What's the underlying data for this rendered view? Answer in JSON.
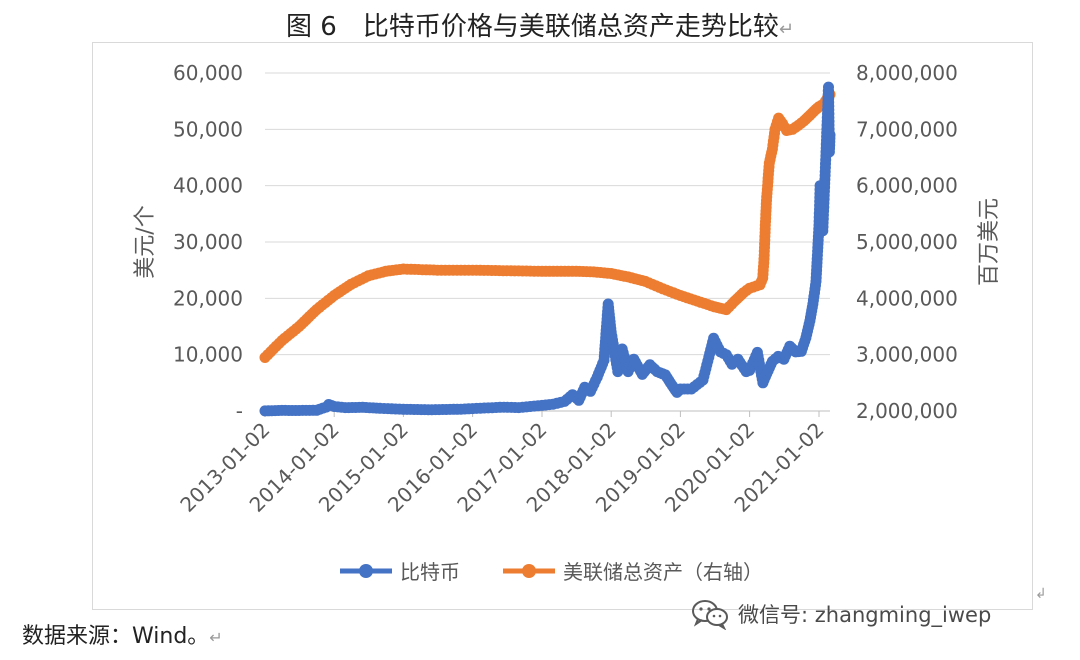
{
  "title": "图 6　比特币价格与美联储总资产走势比较",
  "title_return_mark": "↵",
  "source_text": "数据来源：Wind。",
  "source_return_mark": "↵",
  "watermark_text": "微信号: zhangming_iwep",
  "corner_mark": "↲",
  "colors": {
    "bitcoin": "#4472C4",
    "fed_assets": "#ED7D31",
    "axis_text": "#595959",
    "grid": "#d9d9d9"
  },
  "chart_data": {
    "type": "scatter",
    "title": "比特币价格与美联储总资产走势比较",
    "ylabel_left": "美元/个",
    "ylabel_right": "百万美元",
    "ylim_left": [
      0,
      60000
    ],
    "ylim_right": [
      2000000,
      8000000
    ],
    "yticks_left": [
      "-",
      "10,000",
      "20,000",
      "30,000",
      "40,000",
      "50,000",
      "60,000"
    ],
    "yticks_right": [
      "2,000,000",
      "3,000,000",
      "4,000,000",
      "5,000,000",
      "6,000,000",
      "7,000,000",
      "8,000,000"
    ],
    "xticks": [
      "2013-01-02",
      "2014-01-02",
      "2015-01-02",
      "2016-01-02",
      "2017-01-02",
      "2018-01-02",
      "2019-01-02",
      "2020-01-02",
      "2021-01-02"
    ],
    "xlim": [
      "2013-01-02",
      "2021-03-01"
    ],
    "grid": "horizontal",
    "legend": "bottom",
    "series": [
      {
        "name": "比特币",
        "axis": "left",
        "points": [
          [
            "2013-01-02",
            13
          ],
          [
            "2013-04-01",
            100
          ],
          [
            "2013-07-01",
            90
          ],
          [
            "2013-10-01",
            130
          ],
          [
            "2013-11-20",
            700
          ],
          [
            "2013-12-04",
            1150
          ],
          [
            "2014-01-02",
            800
          ],
          [
            "2014-03-01",
            600
          ],
          [
            "2014-06-01",
            650
          ],
          [
            "2014-09-01",
            480
          ],
          [
            "2015-01-02",
            300
          ],
          [
            "2015-06-01",
            230
          ],
          [
            "2015-11-01",
            320
          ],
          [
            "2016-01-02",
            430
          ],
          [
            "2016-06-15",
            680
          ],
          [
            "2016-09-01",
            600
          ],
          [
            "2017-01-02",
            1000
          ],
          [
            "2017-03-01",
            1200
          ],
          [
            "2017-05-01",
            1700
          ],
          [
            "2017-06-12",
            2900
          ],
          [
            "2017-07-15",
            1900
          ],
          [
            "2017-08-15",
            4200
          ],
          [
            "2017-09-15",
            3500
          ],
          [
            "2017-10-20",
            6000
          ],
          [
            "2017-11-25",
            9000
          ],
          [
            "2017-12-17",
            19000
          ],
          [
            "2018-01-02",
            14000
          ],
          [
            "2018-02-06",
            7000
          ],
          [
            "2018-03-01",
            11000
          ],
          [
            "2018-04-01",
            7000
          ],
          [
            "2018-05-01",
            9200
          ],
          [
            "2018-06-15",
            6500
          ],
          [
            "2018-07-25",
            8200
          ],
          [
            "2018-09-01",
            7000
          ],
          [
            "2018-10-15",
            6400
          ],
          [
            "2018-11-20",
            4500
          ],
          [
            "2018-12-15",
            3300
          ],
          [
            "2019-01-02",
            3900
          ],
          [
            "2019-03-01",
            3900
          ],
          [
            "2019-05-01",
            5500
          ],
          [
            "2019-06-26",
            12900
          ],
          [
            "2019-08-01",
            10500
          ],
          [
            "2019-09-01",
            10000
          ],
          [
            "2019-10-01",
            8300
          ],
          [
            "2019-11-01",
            9200
          ],
          [
            "2019-12-15",
            7000
          ],
          [
            "2020-01-02",
            7200
          ],
          [
            "2020-02-12",
            10400
          ],
          [
            "2020-03-12",
            5000
          ],
          [
            "2020-04-01",
            6600
          ],
          [
            "2020-05-01",
            8800
          ],
          [
            "2020-06-01",
            9700
          ],
          [
            "2020-07-01",
            9200
          ],
          [
            "2020-08-01",
            11500
          ],
          [
            "2020-09-01",
            10500
          ],
          [
            "2020-10-01",
            10600
          ],
          [
            "2020-10-25",
            13000
          ],
          [
            "2020-11-15",
            16000
          ],
          [
            "2020-12-01",
            19000
          ],
          [
            "2020-12-17",
            23000
          ],
          [
            "2021-01-02",
            33000
          ],
          [
            "2021-01-08",
            40000
          ],
          [
            "2021-01-22",
            32000
          ],
          [
            "2021-02-08",
            46000
          ],
          [
            "2021-02-21",
            57500
          ],
          [
            "2021-02-26",
            46000
          ],
          [
            "2021-03-01",
            49000
          ]
        ]
      },
      {
        "name": "美联储总资产（右轴）",
        "axis": "right",
        "points": [
          [
            "2013-01-02",
            2950000
          ],
          [
            "2013-04-01",
            3250000
          ],
          [
            "2013-07-01",
            3500000
          ],
          [
            "2013-10-01",
            3800000
          ],
          [
            "2014-01-02",
            4050000
          ],
          [
            "2014-04-01",
            4250000
          ],
          [
            "2014-07-01",
            4400000
          ],
          [
            "2014-10-01",
            4480000
          ],
          [
            "2015-01-02",
            4520000
          ],
          [
            "2015-07-01",
            4500000
          ],
          [
            "2016-01-02",
            4500000
          ],
          [
            "2016-07-01",
            4490000
          ],
          [
            "2017-01-02",
            4480000
          ],
          [
            "2017-07-01",
            4480000
          ],
          [
            "2017-10-01",
            4470000
          ],
          [
            "2018-01-02",
            4440000
          ],
          [
            "2018-04-01",
            4380000
          ],
          [
            "2018-07-01",
            4300000
          ],
          [
            "2018-10-01",
            4170000
          ],
          [
            "2019-01-02",
            4050000
          ],
          [
            "2019-04-01",
            3950000
          ],
          [
            "2019-07-01",
            3850000
          ],
          [
            "2019-09-01",
            3800000
          ],
          [
            "2019-10-15",
            3950000
          ],
          [
            "2019-12-01",
            4100000
          ],
          [
            "2020-01-02",
            4180000
          ],
          [
            "2020-02-26",
            4240000
          ],
          [
            "2020-03-11",
            4360000
          ],
          [
            "2020-03-18",
            4700000
          ],
          [
            "2020-03-25",
            5300000
          ],
          [
            "2020-04-01",
            5800000
          ],
          [
            "2020-04-15",
            6400000
          ],
          [
            "2020-05-01",
            6650000
          ],
          [
            "2020-05-15",
            7000000
          ],
          [
            "2020-06-03",
            7200000
          ],
          [
            "2020-06-24",
            7100000
          ],
          [
            "2020-07-15",
            6980000
          ],
          [
            "2020-08-15",
            7000000
          ],
          [
            "2020-09-15",
            7070000
          ],
          [
            "2020-10-15",
            7150000
          ],
          [
            "2020-11-15",
            7250000
          ],
          [
            "2020-12-15",
            7350000
          ],
          [
            "2021-01-02",
            7400000
          ],
          [
            "2021-01-27",
            7450000
          ],
          [
            "2021-02-24",
            7600000
          ],
          [
            "2021-03-01",
            7620000
          ]
        ]
      }
    ]
  }
}
